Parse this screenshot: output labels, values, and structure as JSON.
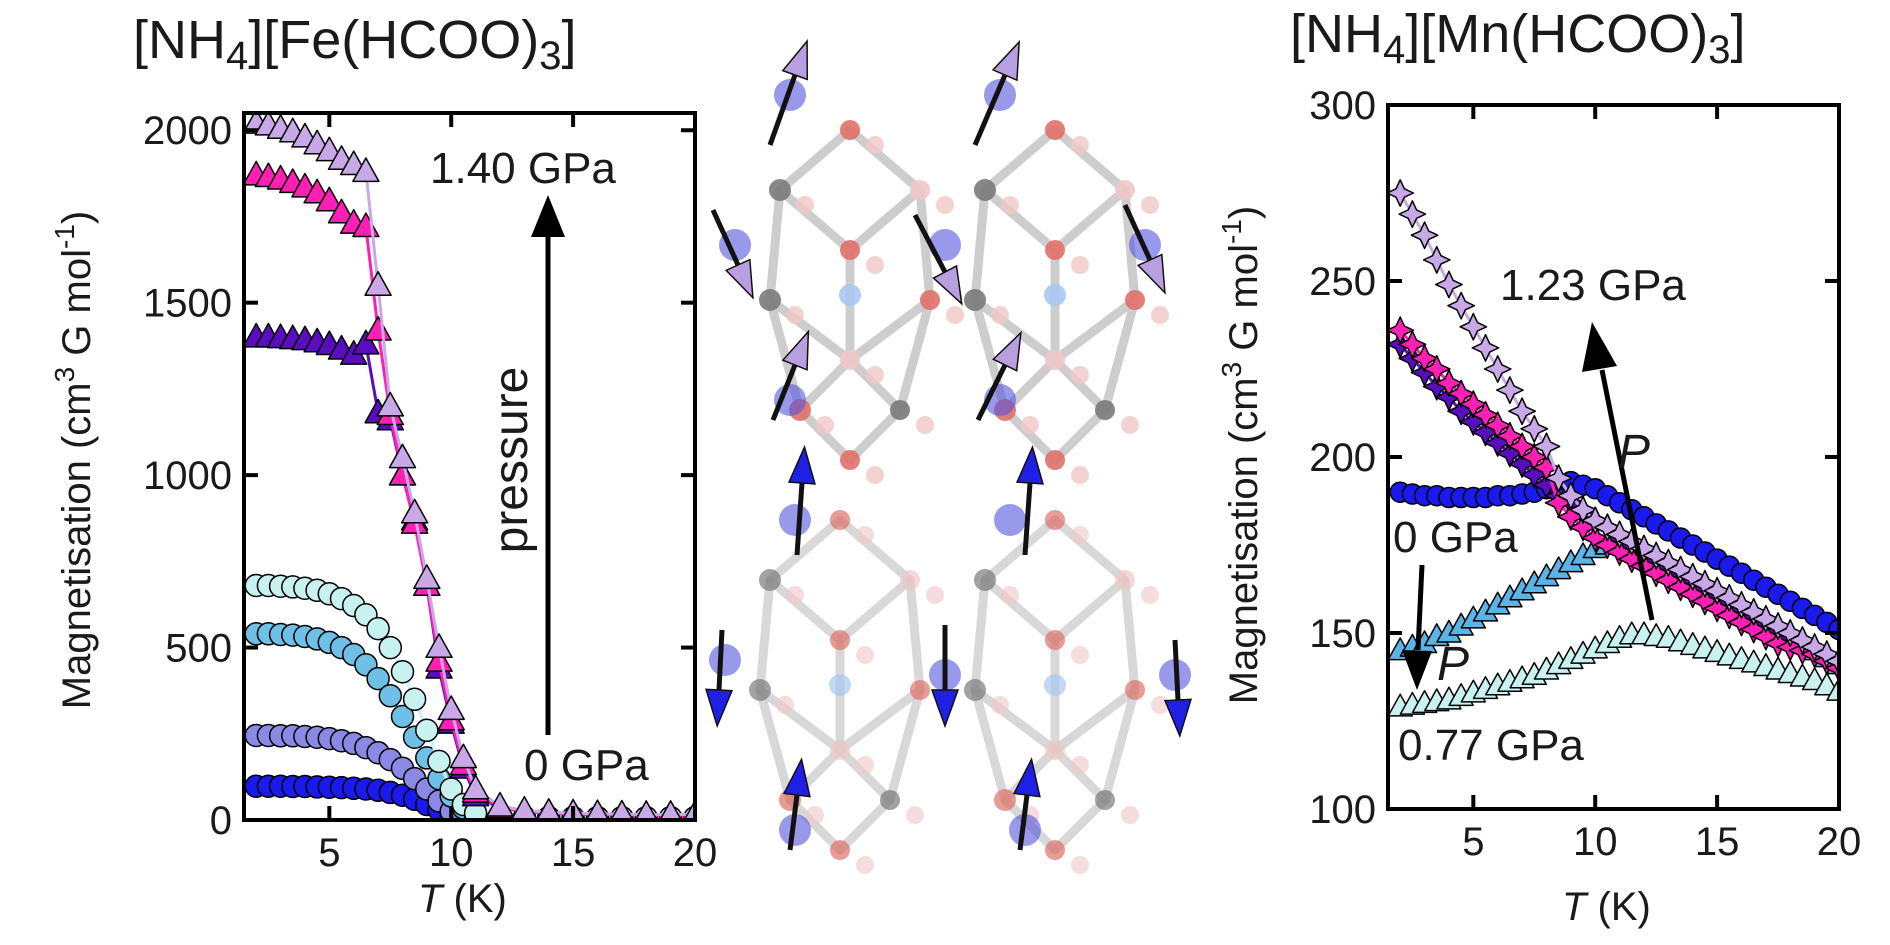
{
  "chart_data": [
    {
      "type": "scatter",
      "title_parts": [
        "[NH",
        "4",
        "][Fe(HCOO)",
        "3",
        "]"
      ],
      "xlabel_italic": "T",
      "xlabel_rest": " (K)",
      "ylabel_prefix": "Magnetisation (cm",
      "ylabel_sup1": "3",
      "ylabel_mid": " G mol",
      "ylabel_sup2": "-1",
      "ylabel_suffix": ")",
      "xlim": [
        1.5,
        20
      ],
      "ylim": [
        0,
        2050
      ],
      "xticks": [
        5,
        10,
        15,
        20
      ],
      "yticks": [
        0,
        500,
        1000,
        1500,
        2000
      ],
      "annotations": {
        "high": "1.40 GPa",
        "low": "0 GPa",
        "arrow_label": "pressure",
        "low_color": "#1a1aee"
      },
      "series": [
        {
          "marker": "circle",
          "color": "#1a1aee",
          "x": [
            2,
            2.5,
            3,
            3.5,
            4,
            4.5,
            5,
            5.5,
            6,
            6.5,
            7,
            7.5,
            8,
            8.5,
            9,
            9.5,
            10,
            10.5,
            11,
            12,
            13,
            14,
            15,
            16,
            17,
            18,
            19,
            20
          ],
          "y": [
            98,
            98,
            98,
            97,
            97,
            96,
            95,
            94,
            92,
            90,
            86,
            80,
            72,
            60,
            45,
            30,
            15,
            8,
            6,
            5,
            5,
            4,
            4,
            4,
            4,
            4,
            4,
            4
          ]
        },
        {
          "marker": "circle",
          "color": "#8a8ae6",
          "x": [
            2,
            2.5,
            3,
            3.5,
            4,
            4.5,
            5,
            5.5,
            6,
            6.5,
            7,
            7.5,
            8,
            8.5,
            9,
            9.5,
            10,
            10.5,
            11,
            12,
            13,
            14,
            15,
            16,
            17,
            18,
            19,
            20
          ],
          "y": [
            245,
            245,
            244,
            244,
            242,
            240,
            236,
            230,
            222,
            210,
            195,
            175,
            150,
            120,
            90,
            55,
            25,
            12,
            8,
            6,
            5,
            5,
            5,
            5,
            5,
            5,
            5,
            5
          ]
        },
        {
          "marker": "circle",
          "color": "#6ec0e6",
          "x": [
            2,
            2.5,
            3,
            3.5,
            4,
            4.5,
            5,
            5.5,
            6,
            6.5,
            7,
            7.5,
            8,
            8.5,
            9,
            9.5,
            10,
            10.5,
            11,
            12,
            13,
            14,
            15,
            16,
            17,
            18,
            19,
            20
          ],
          "y": [
            540,
            540,
            538,
            536,
            532,
            525,
            515,
            500,
            480,
            450,
            410,
            360,
            300,
            240,
            180,
            120,
            70,
            35,
            15,
            8,
            6,
            6,
            6,
            6,
            6,
            6,
            6,
            6
          ]
        },
        {
          "marker": "circle",
          "color": "#c8f2f0",
          "x": [
            2,
            2.5,
            3,
            3.5,
            4,
            4.5,
            5,
            5.5,
            6,
            6.5,
            7,
            7.5,
            8,
            8.5,
            9,
            9.5,
            10,
            10.5,
            11,
            12,
            13,
            14,
            15,
            16,
            17,
            18,
            19,
            20
          ],
          "y": [
            680,
            680,
            678,
            676,
            672,
            666,
            656,
            642,
            622,
            595,
            555,
            500,
            430,
            350,
            260,
            170,
            90,
            45,
            20,
            10,
            8,
            7,
            7,
            7,
            7,
            7,
            7,
            7
          ]
        },
        {
          "marker": "triangle",
          "color": "#5a0dbf",
          "x": [
            2,
            2.5,
            3,
            3.5,
            4,
            4.5,
            5,
            5.5,
            6,
            6.5,
            7,
            7.5,
            8,
            8.5,
            9,
            9.5,
            10,
            10.5,
            11,
            12,
            13,
            14,
            15,
            16,
            17,
            18,
            19,
            20
          ],
          "y": [
            1400,
            1400,
            1398,
            1395,
            1392,
            1386,
            1378,
            1365,
            1350,
            1380,
            1180,
            1160,
            1000,
            870,
            680,
            440,
            280,
            150,
            70,
            35,
            25,
            20,
            18,
            16,
            15,
            14,
            14,
            14
          ]
        },
        {
          "marker": "triangle",
          "color": "#ff1fb4",
          "x": [
            2,
            2.5,
            3,
            3.5,
            4,
            4.5,
            5,
            5.5,
            6,
            6.5,
            7,
            7.5,
            8,
            8.5,
            9,
            9.5,
            10,
            10.5,
            11,
            12,
            13,
            14,
            15,
            16,
            17,
            18,
            19,
            20
          ],
          "y": [
            1870,
            1865,
            1858,
            1848,
            1835,
            1818,
            1795,
            1760,
            1730,
            1720,
            1420,
            1175,
            1000,
            860,
            680,
            460,
            290,
            160,
            80,
            35,
            25,
            20,
            18,
            16,
            15,
            14,
            14,
            14
          ]
        },
        {
          "marker": "triangle",
          "color": "#c8a8e6",
          "x": [
            2,
            2.5,
            3,
            3.5,
            4,
            4.5,
            5,
            5.5,
            6,
            6.5,
            7,
            7.5,
            8,
            8.5,
            9,
            9.5,
            10,
            10.5,
            11,
            12,
            13,
            14,
            15,
            16,
            17,
            18,
            19,
            20
          ],
          "y": [
            2020,
            2015,
            2005,
            1995,
            1980,
            1960,
            1940,
            1915,
            1900,
            1880,
            1550,
            1200,
            1050,
            890,
            700,
            500,
            320,
            180,
            90,
            40,
            28,
            22,
            20,
            18,
            17,
            16,
            16,
            16
          ]
        }
      ]
    },
    {
      "type": "scatter",
      "title_parts": [
        "[NH",
        "4",
        "][Mn(HCOO)",
        "3",
        "]"
      ],
      "xlabel_italic": "T",
      "xlabel_rest": " (K)",
      "ylabel_prefix": "Magnetisation (cm",
      "ylabel_sup1": "3",
      "ylabel_mid": " G mol",
      "ylabel_sup2": "-1",
      "ylabel_suffix": ")",
      "xlim": [
        1.5,
        20
      ],
      "ylim": [
        100,
        300
      ],
      "xticks": [
        5,
        10,
        15,
        20
      ],
      "yticks": [
        100,
        150,
        200,
        250,
        300
      ],
      "annotations": {
        "high": "1.23 GPa",
        "low": "0 GPa",
        "mid": "0.77 GPa",
        "p1": "P",
        "p2": "P",
        "low_color": "#1a1aee"
      },
      "series": [
        {
          "marker": "circle",
          "color": "#1a1aee",
          "x": [
            2,
            2.5,
            3,
            3.5,
            4,
            4.5,
            5,
            5.5,
            6,
            6.5,
            7,
            7.5,
            8,
            8.5,
            9,
            9.5,
            10,
            10.5,
            11,
            11.5,
            12,
            12.5,
            13,
            13.5,
            14,
            14.5,
            15,
            15.5,
            16,
            16.5,
            17,
            17.5,
            18,
            18.5,
            19,
            19.5,
            20
          ],
          "y": [
            190,
            189.5,
            189,
            189,
            188.5,
            188.5,
            188.5,
            188.5,
            189,
            189,
            189.5,
            190,
            191,
            192,
            193,
            192,
            191,
            189,
            187,
            185,
            183,
            181,
            179,
            177,
            175,
            173,
            171,
            169,
            167,
            165,
            163,
            161,
            159,
            157,
            155,
            153,
            151
          ]
        },
        {
          "marker": "triangle",
          "color": "#5ab4e6",
          "x": [
            2,
            2.5,
            3,
            3.5,
            4,
            4.5,
            5,
            5.5,
            6,
            6.5,
            7,
            7.5,
            8,
            8.5,
            9,
            9.5,
            10,
            10.5,
            11,
            11.5,
            12,
            12.5,
            13,
            13.5,
            14,
            14.5,
            15,
            15.5,
            16,
            16.5,
            17,
            17.5,
            18,
            18.5,
            19,
            19.5,
            20
          ],
          "y": [
            145,
            146,
            147,
            149,
            150,
            152,
            154,
            156,
            158,
            160,
            162,
            164,
            166,
            168,
            170,
            172,
            174,
            175,
            176,
            175,
            173,
            171,
            169,
            167,
            165,
            163,
            161,
            159,
            157,
            155,
            153,
            151,
            149,
            147,
            145,
            143,
            141
          ]
        },
        {
          "marker": "triangle",
          "color": "#c8f2f0",
          "x": [
            2,
            2.5,
            3,
            3.5,
            4,
            4.5,
            5,
            5.5,
            6,
            6.5,
            7,
            7.5,
            8,
            8.5,
            9,
            9.5,
            10,
            10.5,
            11,
            11.5,
            12,
            12.5,
            13,
            13.5,
            14,
            14.5,
            15,
            15.5,
            16,
            16.5,
            17,
            17.5,
            18,
            18.5,
            19,
            19.5,
            20
          ],
          "y": [
            129,
            129.5,
            130,
            130.5,
            131,
            132,
            133,
            134,
            135,
            136,
            137,
            138,
            139.5,
            141,
            142.5,
            144,
            145.5,
            147,
            148.5,
            149.5,
            149.5,
            149,
            148.5,
            147.5,
            146.5,
            145.5,
            144.5,
            143.5,
            142.5,
            141.5,
            140.5,
            139.5,
            138.5,
            137.5,
            136.5,
            135,
            133.5
          ]
        },
        {
          "marker": "diamond",
          "color": "#5a0dbf",
          "x": [
            2,
            2.5,
            3,
            3.5,
            4,
            4.5,
            5,
            5.5,
            6,
            6.5,
            7,
            7.5,
            8,
            8.5,
            9,
            9.5,
            10,
            10.5,
            11,
            11.5,
            12,
            12.5,
            13,
            13.5,
            14,
            14.5,
            15,
            15.5,
            16,
            16.5,
            17,
            17.5,
            18,
            18.5,
            19,
            19.5,
            20
          ],
          "y": [
            232,
            228,
            224,
            220,
            217,
            213,
            210,
            207,
            204,
            201,
            198,
            195,
            192,
            189,
            187,
            184,
            182,
            180,
            177,
            175,
            173,
            171,
            169,
            167,
            165,
            163,
            161,
            159,
            157,
            155,
            153,
            151,
            149,
            147,
            145,
            143,
            141
          ]
        },
        {
          "marker": "diamond",
          "color": "#ff1fb4",
          "x": [
            2,
            2.5,
            3,
            3.5,
            4,
            4.5,
            5,
            5.5,
            6,
            6.5,
            7,
            7.5,
            8,
            8.5,
            9,
            9.5,
            10,
            10.5,
            11,
            11.5,
            12,
            12.5,
            13,
            13.5,
            14,
            14.5,
            15,
            15.5,
            16,
            16.5,
            17,
            17.5,
            18,
            18.5,
            19,
            19.5,
            20
          ],
          "y": [
            236,
            232,
            228,
            225,
            221,
            218,
            215,
            212,
            209,
            206,
            203,
            200,
            197,
            187,
            183,
            180,
            177,
            175,
            173,
            171,
            169,
            167,
            165,
            163,
            161,
            159,
            157,
            155,
            153,
            151,
            149,
            147,
            146,
            145,
            144,
            142,
            140
          ]
        },
        {
          "marker": "diamond",
          "color": "#c8a8e6",
          "x": [
            2,
            2.5,
            3,
            3.5,
            4,
            4.5,
            5,
            5.5,
            6,
            6.5,
            7,
            7.5,
            8,
            8.5,
            9,
            9.5,
            10,
            10.5,
            11,
            11.5,
            12,
            12.5,
            13,
            13.5,
            14,
            14.5,
            15,
            15.5,
            16,
            16.5,
            17,
            17.5,
            18,
            18.5,
            19,
            19.5,
            20
          ],
          "y": [
            275,
            269,
            263,
            256,
            249,
            243,
            237,
            231,
            225,
            219,
            213,
            208,
            203,
            194,
            189,
            185,
            182,
            180,
            178,
            176,
            174,
            172,
            170,
            168,
            166,
            164,
            162,
            160,
            158,
            156,
            154,
            152,
            150,
            148,
            146,
            144,
            142
          ]
        }
      ]
    }
  ]
}
